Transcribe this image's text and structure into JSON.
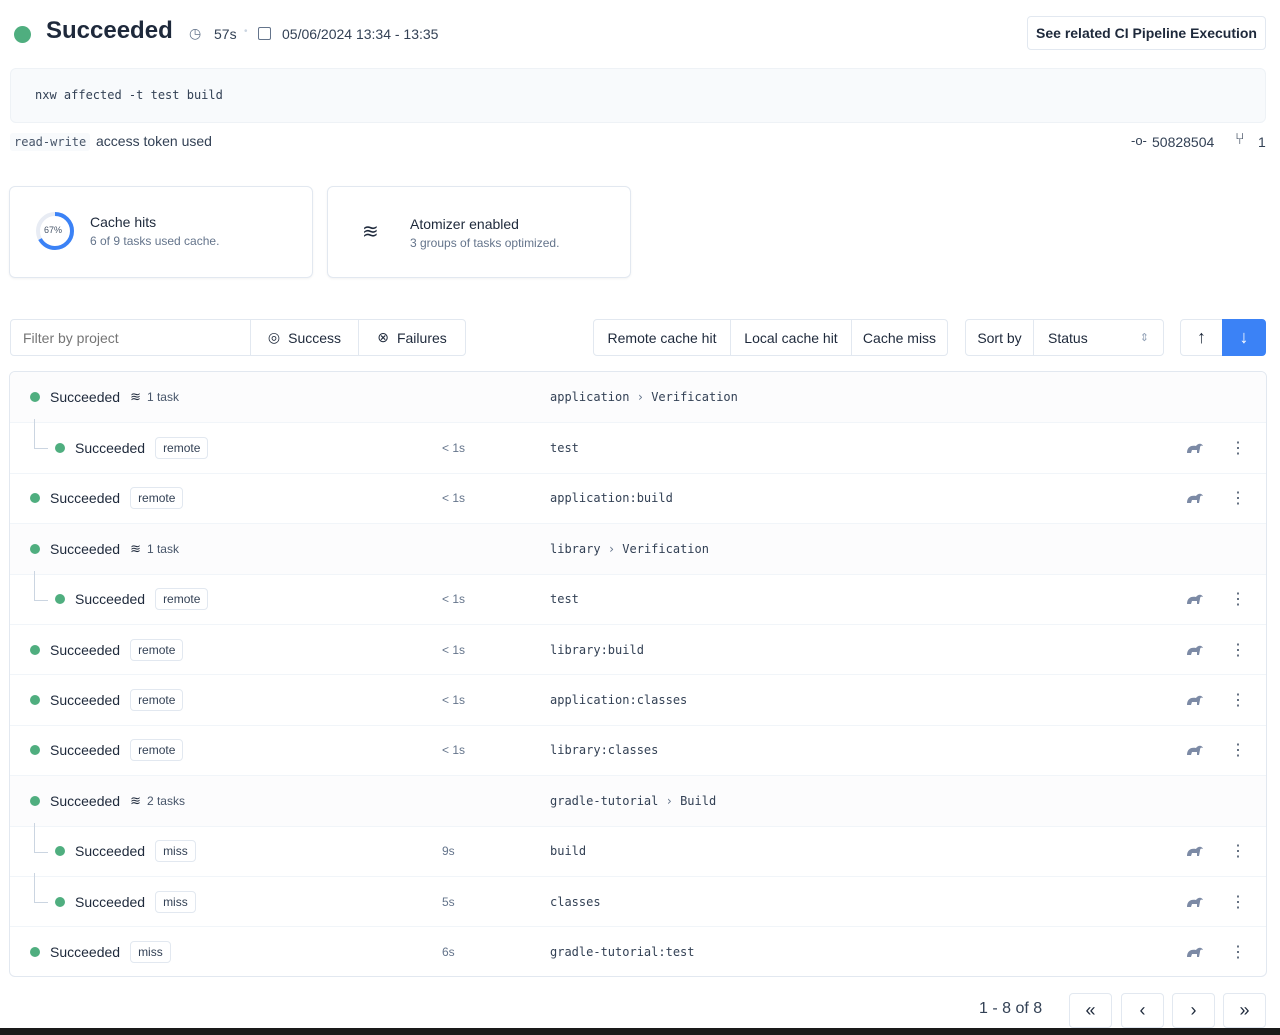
{
  "header": {
    "status": "Succeeded",
    "duration": "57s",
    "date_range": "05/06/2024 13:34 - 13:35",
    "related_button": "See related CI Pipeline Execution",
    "status_color": "#4fae7f"
  },
  "command": "nxw affected -t test build",
  "token": {
    "badge": "read-write",
    "text": "access token used"
  },
  "commit": {
    "sha": "50828504",
    "branches": "1"
  },
  "cards": {
    "cache": {
      "percent_label": "67%",
      "percent": 67,
      "title": "Cache hits",
      "subtitle": "6 of 9 tasks used cache."
    },
    "atomizer": {
      "title": "Atomizer enabled",
      "subtitle": "3 groups of tasks optimized."
    }
  },
  "filters": {
    "project_placeholder": "Filter by project",
    "success": "Success",
    "failures": "Failures",
    "remote": "Remote cache hit",
    "local": "Local cache hit",
    "miss": "Cache miss",
    "sort_label": "Sort by",
    "sort_value": "Status"
  },
  "rows": [
    {
      "status": "Succeeded",
      "group": true,
      "count": "1 task",
      "project": "application",
      "name": "Verification"
    },
    {
      "status": "Succeeded",
      "child": true,
      "badge": "remote",
      "duration": "< 1s",
      "target": "test"
    },
    {
      "status": "Succeeded",
      "badge": "remote",
      "duration": "< 1s",
      "target": "application:build"
    },
    {
      "status": "Succeeded",
      "group": true,
      "count": "1 task",
      "project": "library",
      "name": "Verification"
    },
    {
      "status": "Succeeded",
      "child": true,
      "badge": "remote",
      "duration": "< 1s",
      "target": "test"
    },
    {
      "status": "Succeeded",
      "badge": "remote",
      "duration": "< 1s",
      "target": "library:build"
    },
    {
      "status": "Succeeded",
      "badge": "remote",
      "duration": "< 1s",
      "target": "application:classes"
    },
    {
      "status": "Succeeded",
      "badge": "remote",
      "duration": "< 1s",
      "target": "library:classes"
    },
    {
      "status": "Succeeded",
      "group": true,
      "count": "2 tasks",
      "project": "gradle-tutorial",
      "name": "Build"
    },
    {
      "status": "Succeeded",
      "child": true,
      "badge": "miss",
      "duration": "9s",
      "target": "build"
    },
    {
      "status": "Succeeded",
      "child": true,
      "badge": "miss",
      "duration": "5s",
      "target": "classes"
    },
    {
      "status": "Succeeded",
      "badge": "miss",
      "duration": "6s",
      "target": "gradle-tutorial:test"
    }
  ],
  "pagination": {
    "label": "1 - 8 of 8"
  }
}
